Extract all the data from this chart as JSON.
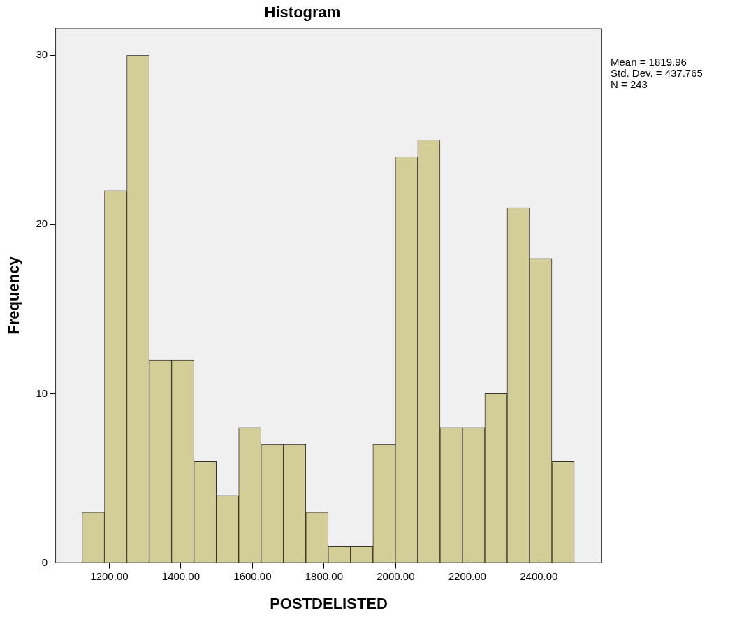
{
  "chart_data": {
    "type": "histogram",
    "title": "Histogram",
    "xlabel": "POSTDELISTED",
    "ylabel": "Frequency",
    "bins": [
      1124,
      1186.5,
      1249,
      1311.5,
      1374,
      1436.5,
      1499,
      1561.5,
      1624,
      1686.5,
      1749,
      1811.5,
      1874,
      1936.5,
      1999,
      2061.5,
      2124,
      2186.5,
      2249,
      2311.5,
      2374,
      2436.5,
      2499
    ],
    "values": [
      3,
      22,
      30,
      12,
      12,
      6,
      4,
      8,
      7,
      7,
      3,
      1,
      1,
      7,
      24,
      25,
      8,
      8,
      10,
      21,
      18,
      6
    ],
    "color": "#d3ce97",
    "xlim": [
      1049,
      2577
    ],
    "xticks": [
      {
        "value": 1200,
        "label": "1200.00"
      },
      {
        "value": 1400,
        "label": "1400.00"
      },
      {
        "value": 1600,
        "label": "1600.00"
      },
      {
        "value": 1800,
        "label": "1800.00"
      },
      {
        "value": 2000,
        "label": "2000.00"
      },
      {
        "value": 2200,
        "label": "2200.00"
      },
      {
        "value": 2400,
        "label": "2400.00"
      }
    ],
    "ylim": [
      0,
      31.6
    ],
    "yticks": [
      0,
      10,
      20,
      30
    ],
    "grid": false,
    "legend": false,
    "annotations": [
      "Mean = 1819.96",
      "Std. Dev. = 437.765",
      "N = 243"
    ]
  }
}
